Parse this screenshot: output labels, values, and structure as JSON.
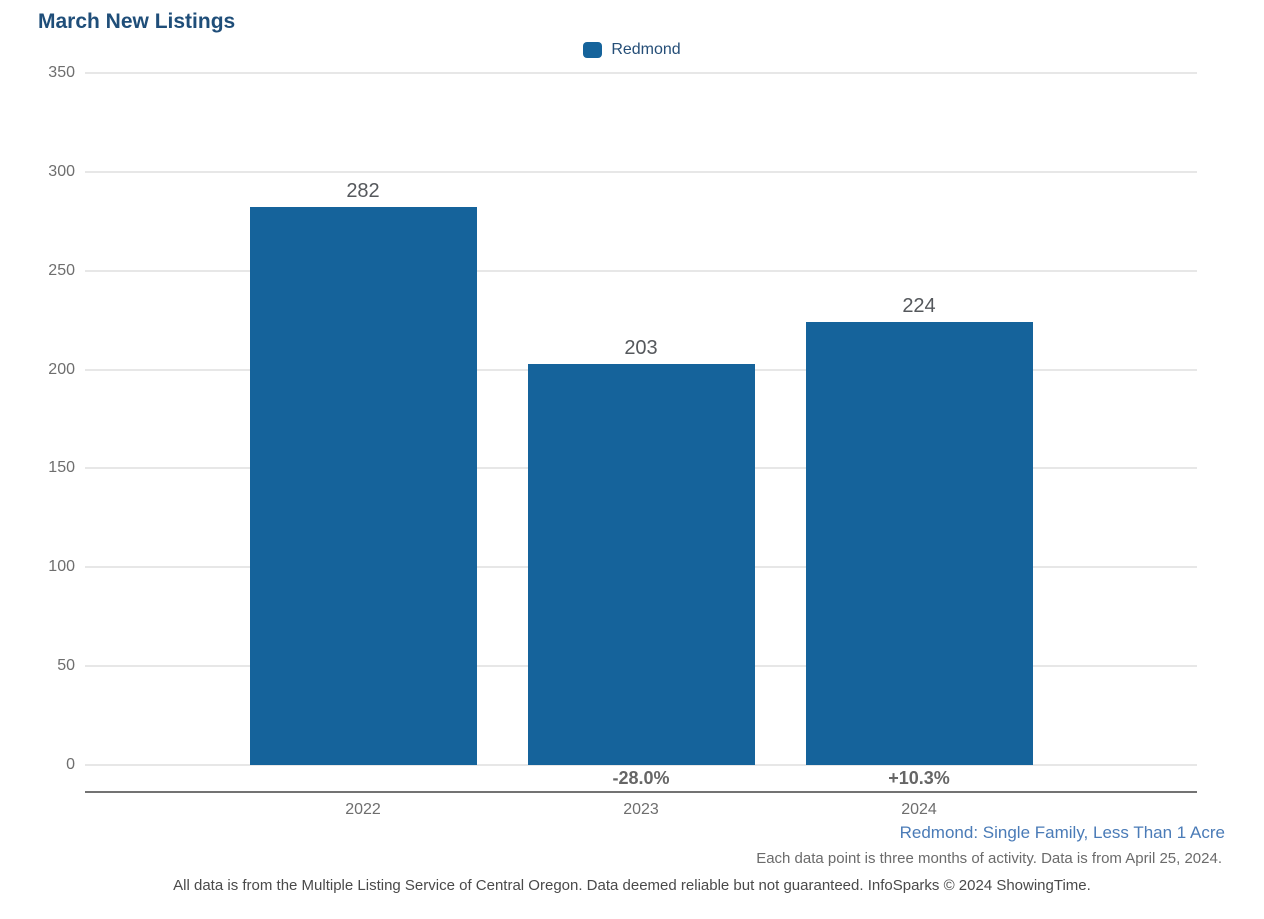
{
  "header": {
    "title": "March New Listings"
  },
  "legend": {
    "label": "Redmond"
  },
  "chart_data": {
    "type": "bar",
    "title": "March New Listings",
    "categories": [
      "2022",
      "2023",
      "2024"
    ],
    "series": [
      {
        "name": "Redmond",
        "values": [
          282,
          203,
          224
        ]
      }
    ],
    "value_labels": [
      "282",
      "203",
      "224"
    ],
    "pct_change_labels": [
      "",
      "-28.0%",
      "+10.3%"
    ],
    "xlabel": "",
    "ylabel": "",
    "ylim": [
      0,
      350
    ],
    "yticks": [
      0,
      50,
      100,
      150,
      200,
      250,
      300,
      350
    ],
    "grid": true,
    "legend_position": "top-center"
  },
  "captions": {
    "segment": "Redmond: Single Family, Less Than 1 Acre",
    "data_note": "Each data point is three months of activity. Data is from April 25, 2024.",
    "footer": "All data is from the Multiple Listing Service of Central Oregon. Data deemed reliable but not guaranteed. InfoSparks © 2024 ShowingTime."
  },
  "colors": {
    "bar": "#15639B",
    "title": "#1F4E79",
    "legend_text": "#254E77",
    "caption_blue": "#4A7BB7",
    "gridline": "#E7E7E7",
    "axis_line": "#737373",
    "tick_text": "#6E6E6E",
    "value_label_text": "#55585C",
    "pct_label_text": "#666666"
  }
}
